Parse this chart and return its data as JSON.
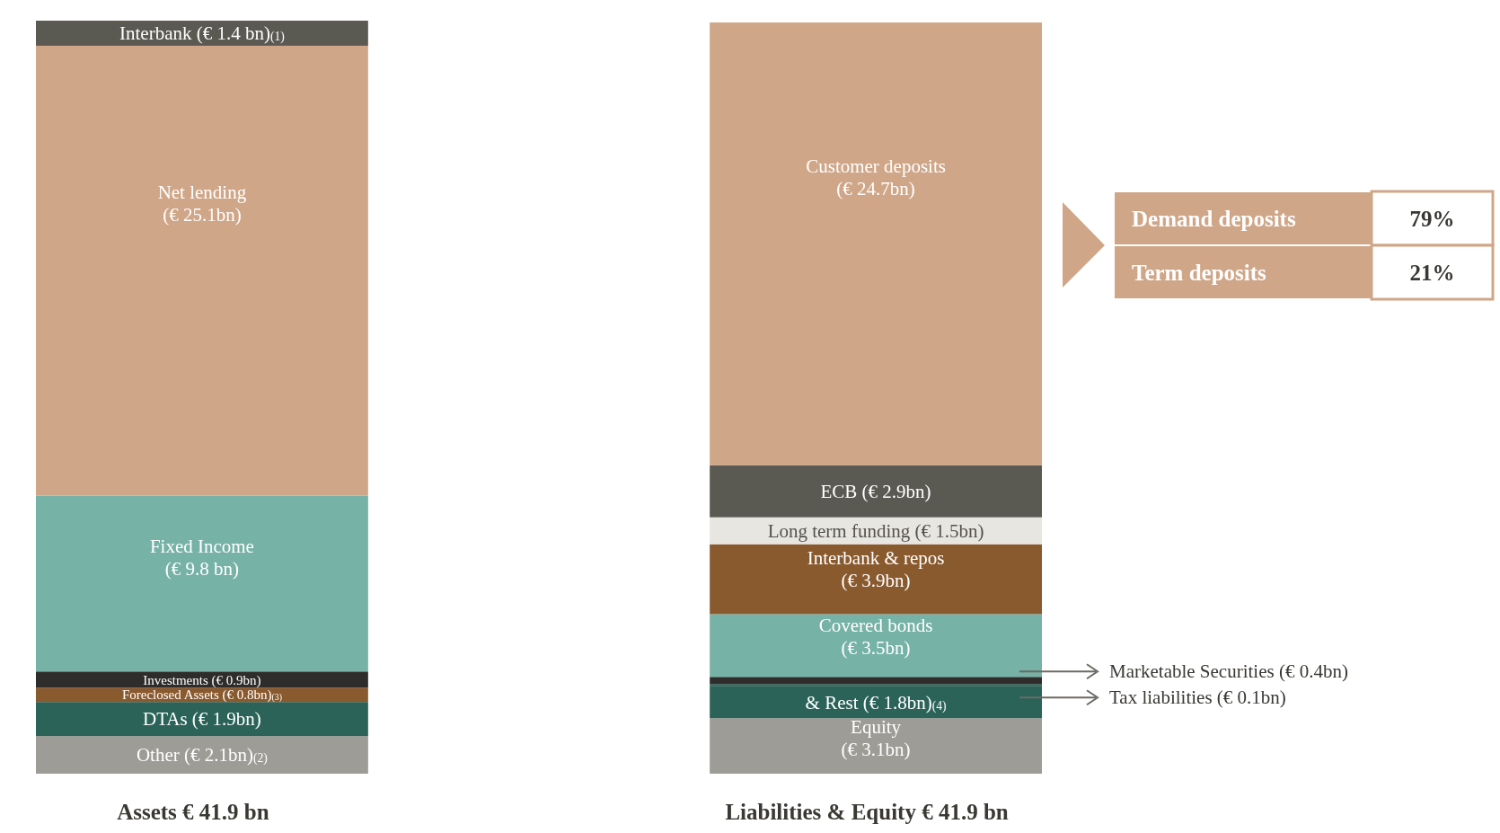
{
  "chart_data": {
    "type": "bar",
    "stacked": true,
    "tick_labels": "x",
    "categories": [
      "Assets € 41.9 bn",
      "Liabilities & Equity € 41.9 bn"
    ],
    "series": [
      {
        "name": "Other",
        "color": "#9d9c97",
        "values": [
          2.1,
          null
        ],
        "value_labels": [
          "(€ 2.1bn)$_{(2)}$",
          null
        ]
      },
      {
        "name": "DTAs",
        "color": "#2b6358",
        "values": [
          1.9,
          null
        ],
        "value_labels": [
          "(€ 1.9bn)",
          null
        ]
      },
      {
        "name": "Foreclosed Assets",
        "color": "#8a5a2f",
        "values": [
          0.8,
          null
        ],
        "value_labels": [
          "(€ 0.8bn)$_{(3)}$",
          null
        ]
      },
      {
        "name": "Investments",
        "color": "#2f2d2b",
        "values": [
          0.9,
          null
        ],
        "value_labels": [
          "(€ 0.9bn)",
          null
        ]
      },
      {
        "name": "Fixed Income",
        "color": "#76b2a6",
        "values": [
          9.8,
          null
        ],
        "value_labels": [
          "(€ 9.8 bn)",
          null
        ]
      },
      {
        "name": "Net lending",
        "color": "#cfa688",
        "values": [
          25.1,
          null
        ],
        "value_labels": [
          "(€ 25.1bn)",
          null
        ]
      },
      {
        "name": "Interbank",
        "color": "#5b5a52",
        "values": [
          1.4,
          null
        ],
        "value_labels": [
          "(€ 1.4 bn)$_{(1)}$",
          null
        ]
      },
      {
        "name": "Equity",
        "color": "#9d9c97",
        "values": [
          null,
          3.1
        ],
        "value_labels": [
          null,
          "(€ 3.1bn)"
        ]
      },
      {
        "name": "& Rest",
        "color": "#2b6358",
        "values": [
          null,
          1.8
        ],
        "value_labels": [
          null,
          "(€ 1.8bn)$_{(4)}$"
        ]
      },
      {
        "name": "Tax liabilities",
        "color": "#2b6358",
        "values": [
          null,
          0.1
        ],
        "value_labels": [
          null,
          "(€ 0.1bn)"
        ]
      },
      {
        "name": "Marketable Securities",
        "color": "#2f2d2b",
        "values": [
          null,
          0.4
        ],
        "value_labels": [
          null,
          "(€ 0.4bn)"
        ]
      },
      {
        "name": "Covered bonds",
        "color": "#76b2a6",
        "values": [
          null,
          3.5
        ],
        "value_labels": [
          null,
          "(€ 3.5bn)"
        ]
      },
      {
        "name": "Interbank & repos",
        "color": "#8a5a2f",
        "values": [
          null,
          3.9
        ],
        "value_labels": [
          null,
          "(€ 3.9bn)"
        ]
      },
      {
        "name": "Long term funding",
        "color": "#e8e6e1",
        "values": [
          null,
          1.5
        ],
        "value_labels": [
          null,
          "(€ 1.5bn)"
        ]
      },
      {
        "name": "ECB",
        "color": "#5b5a52",
        "values": [
          null,
          2.9
        ],
        "value_labels": [
          null,
          "(€ 2.9bn)"
        ]
      },
      {
        "name": "Customer deposits",
        "color": "#cfa688",
        "values": [
          null,
          24.7
        ],
        "value_labels": [
          null,
          "(€ 24.7bn)"
        ]
      }
    ],
    "annotations": [
      "Demand deposits",
      "79%",
      "Term deposits",
      "21%"
    ]
  }
}
